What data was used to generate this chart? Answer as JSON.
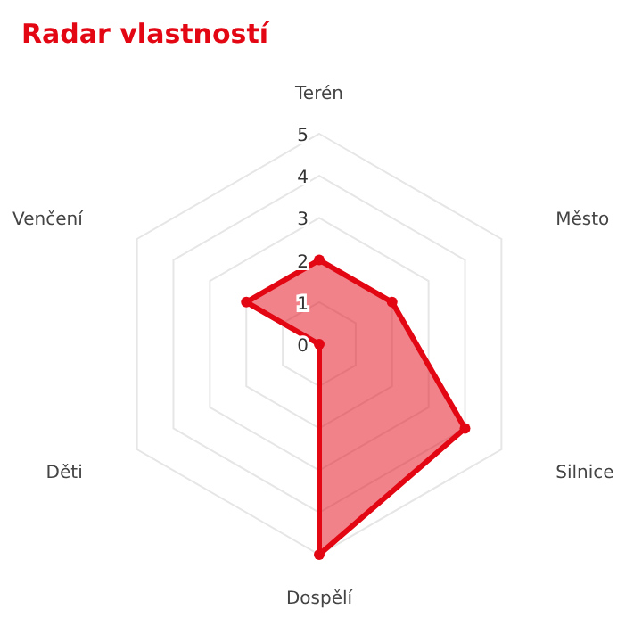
{
  "chart_data": {
    "type": "radar",
    "title": "Radar vlastností",
    "categories": [
      "Terén",
      "Město",
      "Silnice",
      "Dospělí",
      "Děti",
      "Venčení"
    ],
    "series": [
      {
        "color": "#e30613",
        "values": [
          2,
          2,
          4,
          5,
          0,
          2
        ]
      }
    ],
    "ylim": [
      0,
      5
    ],
    "yticks": [
      0,
      1,
      2,
      3,
      4,
      5
    ],
    "grid": true,
    "marker": "circle"
  }
}
